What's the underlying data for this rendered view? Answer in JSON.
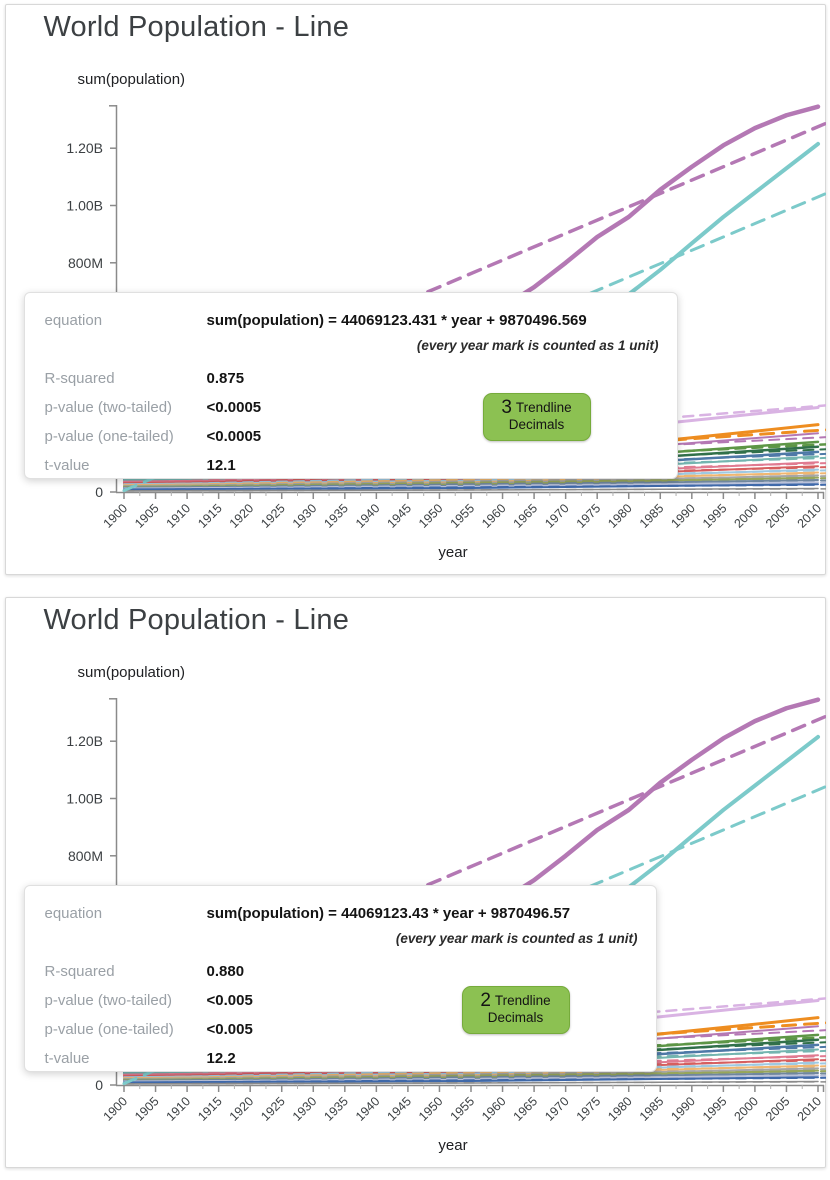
{
  "panels": [
    {
      "title": "World Population - Line",
      "tooltip": {
        "equation_label": "equation",
        "equation_value": "sum(population) = 44069123.431 * year + 9870496.569",
        "equation_note": "(every year mark is counted as 1 unit)",
        "stats": [
          {
            "label": "R-squared",
            "value": "0.875"
          },
          {
            "label": "p-value (two-tailed)",
            "value": "<0.0005"
          },
          {
            "label": "p-value (one-tailed)",
            "value": "<0.0005"
          },
          {
            "label": "t-value",
            "value": "12.1"
          }
        ],
        "button": {
          "count": "3",
          "label_line1": "Trendline",
          "label_line2": "Decimals"
        }
      }
    },
    {
      "title": "World Population - Line",
      "tooltip": {
        "equation_label": "equation",
        "equation_value": "sum(population) = 44069123.43 * year + 9870496.57",
        "equation_note": "(every year mark is counted as 1 unit)",
        "stats": [
          {
            "label": "R-squared",
            "value": "0.880"
          },
          {
            "label": "p-value (two-tailed)",
            "value": "<0.005"
          },
          {
            "label": "p-value (one-tailed)",
            "value": "<0.005"
          },
          {
            "label": "t-value",
            "value": "12.2"
          }
        ],
        "button": {
          "count": "2",
          "label_line1": "Trendline",
          "label_line2": "Decimals"
        }
      }
    }
  ],
  "chart_data": {
    "type": "line",
    "title": "World Population - Line",
    "xlabel": "year",
    "ylabel": "sum(population)",
    "unit": "billions",
    "xlim": [
      1900,
      2010
    ],
    "ylim": [
      0,
      1.35
    ],
    "x_ticks": [
      1900,
      1905,
      1910,
      1915,
      1920,
      1925,
      1930,
      1935,
      1940,
      1945,
      1950,
      1955,
      1960,
      1965,
      1970,
      1975,
      1980,
      1985,
      1990,
      1995,
      2000,
      2005,
      2010
    ],
    "y_ticks": [
      {
        "label": "0",
        "value": 0
      },
      {
        "label": "800M",
        "value": 0.8
      },
      {
        "label": "1.00B",
        "value": 1.0
      },
      {
        "label": "1.20B",
        "value": 1.2
      }
    ],
    "series": [
      {
        "id": "bundle-01",
        "color": "#d9b3e3",
        "width": 3,
        "x": [
          1900,
          1955,
          2010
        ],
        "values": [
          0.125,
          0.17,
          0.295
        ],
        "trend": {
          "start": 0.11,
          "end": 0.3,
          "width": 2.5
        }
      },
      {
        "id": "bundle-02",
        "color": "#ee8d20",
        "width": 3,
        "x": [
          1900,
          1955,
          2010
        ],
        "values": [
          0.075,
          0.11,
          0.235
        ],
        "trend": {
          "start": 0.055,
          "end": 0.215,
          "width": 3
        }
      },
      {
        "id": "bundle-03",
        "color": "#b478b4",
        "width": 2,
        "x": [
          1900,
          1955,
          2010
        ],
        "values": [
          0.08,
          0.112,
          0.205
        ],
        "trend": {
          "start": 0.07,
          "end": 0.19,
          "width": 2
        }
      },
      {
        "id": "bundle-04",
        "color": "#5d9646",
        "width": 2.5,
        "x": [
          1900,
          1955,
          2010
        ],
        "values": [
          0.058,
          0.09,
          0.175
        ],
        "trend": {
          "start": 0.05,
          "end": 0.165,
          "width": 2.5
        }
      },
      {
        "id": "bundle-05",
        "color": "#31704a",
        "width": 2.5,
        "x": [
          1900,
          1955,
          2010
        ],
        "values": [
          0.052,
          0.08,
          0.158
        ],
        "trend": {
          "start": 0.047,
          "end": 0.148,
          "width": 2
        }
      },
      {
        "id": "bundle-06",
        "color": "#4e79a7",
        "width": 2.5,
        "x": [
          1900,
          1955,
          2010
        ],
        "values": [
          0.047,
          0.07,
          0.14
        ],
        "trend": {
          "start": 0.042,
          "end": 0.132,
          "width": 2
        }
      },
      {
        "id": "bundle-07",
        "color": "#74b5b0",
        "width": 2,
        "x": [
          1900,
          1955,
          2010
        ],
        "values": [
          0.042,
          0.06,
          0.124
        ],
        "trend": {
          "start": 0.038,
          "end": 0.118,
          "width": 2
        }
      },
      {
        "id": "bundle-08",
        "color": "#e07b91",
        "width": 2,
        "x": [
          1900,
          1955,
          2010
        ],
        "values": [
          0.036,
          0.05,
          0.104
        ],
        "trend": {
          "start": 0.033,
          "end": 0.1,
          "width": 2
        }
      },
      {
        "id": "bundle-09",
        "color": "#d65f5f",
        "width": 2,
        "x": [
          1900,
          1955,
          2010
        ],
        "values": [
          0.031,
          0.045,
          0.09
        ],
        "trend": {
          "start": 0.028,
          "end": 0.086,
          "width": 2
        }
      },
      {
        "id": "bundle-10",
        "color": "#9ec9e2",
        "width": 2,
        "x": [
          1900,
          1955,
          2010
        ],
        "values": [
          0.027,
          0.04,
          0.078
        ],
        "trend": {
          "start": 0.025,
          "end": 0.075,
          "width": 2
        }
      },
      {
        "id": "bundle-11",
        "color": "#f0b670",
        "width": 2,
        "x": [
          1900,
          1955,
          2010
        ],
        "values": [
          0.024,
          0.034,
          0.068
        ],
        "trend": {
          "start": 0.022,
          "end": 0.065,
          "width": 2
        }
      },
      {
        "id": "bundle-12",
        "color": "#a6a6a6",
        "width": 2,
        "x": [
          1900,
          1955,
          2010
        ],
        "values": [
          0.021,
          0.03,
          0.058
        ],
        "trend": {
          "start": 0.019,
          "end": 0.055,
          "width": 2
        }
      },
      {
        "id": "bundle-13",
        "color": "#97a65a",
        "width": 2,
        "x": [
          1900,
          1955,
          2010
        ],
        "values": [
          0.018,
          0.026,
          0.05
        ],
        "trend": {
          "start": 0.017,
          "end": 0.048,
          "width": 2
        }
      },
      {
        "id": "bundle-14",
        "color": "#70879e",
        "width": 2,
        "x": [
          1900,
          1955,
          2010
        ],
        "values": [
          0.015,
          0.022,
          0.042
        ],
        "trend": {
          "start": 0.014,
          "end": 0.04,
          "width": 2
        }
      },
      {
        "id": "bundle-15",
        "color": "#bac1d9",
        "width": 2,
        "x": [
          1900,
          1955,
          2010
        ],
        "values": [
          0.012,
          0.018,
          0.034
        ],
        "trend": {
          "start": 0.011,
          "end": 0.032,
          "width": 2
        }
      },
      {
        "id": "bundle-16",
        "color": "#3f69aa",
        "width": 2,
        "x": [
          1900,
          1955,
          2010
        ],
        "values": [
          0.009,
          0.014,
          0.027
        ],
        "trend": {
          "start": 0.008,
          "end": 0.025,
          "width": 2
        }
      },
      {
        "id": "bundle-17",
        "color": "#8a8a8a",
        "width": 1.5,
        "x": [
          1900,
          1955,
          2010
        ],
        "values": [
          0.004,
          0.007,
          0.012
        ],
        "trend": {
          "start": 0.004,
          "end": 0.011,
          "width": 1.5
        }
      },
      {
        "id": "series-teal-major",
        "color": "#7ccaca",
        "width": 4,
        "x": [
          1900,
          1905,
          1910,
          1915,
          1920,
          1925,
          1930,
          1935,
          1940,
          1945,
          1950,
          1955,
          1960,
          1965,
          1970,
          1975,
          1980,
          1985,
          1990,
          1995,
          2000,
          2005,
          2010
        ],
        "values": [
          0.238,
          0.24,
          0.243,
          0.246,
          0.248,
          0.256,
          0.27,
          0.288,
          0.31,
          0.332,
          0.358,
          0.395,
          0.44,
          0.492,
          0.55,
          0.618,
          0.69,
          0.775,
          0.868,
          0.96,
          1.045,
          1.13,
          1.215
        ],
        "trend": {
          "start": 0.005,
          "end": 1.03,
          "width": 3
        }
      },
      {
        "id": "series-purple-major",
        "color": "#b478b4",
        "width": 4.5,
        "x": [
          1900,
          1905,
          1910,
          1915,
          1920,
          1925,
          1930,
          1935,
          1940,
          1945,
          1950,
          1955,
          1960,
          1965,
          1970,
          1975,
          1980,
          1985,
          1990,
          1995,
          2000,
          2005,
          2010
        ],
        "values": [
          0.4,
          0.408,
          0.418,
          0.428,
          0.44,
          0.455,
          0.472,
          0.49,
          0.512,
          0.528,
          0.552,
          0.596,
          0.645,
          0.715,
          0.8,
          0.89,
          0.96,
          1.055,
          1.135,
          1.21,
          1.27,
          1.315,
          1.345
        ],
        "trend": {
          "start": 0.25,
          "end": 1.275,
          "width": 3.5
        }
      }
    ]
  },
  "colors": {
    "button_green": "#8cc152",
    "panel_border": "#d8d8d8",
    "axis": "#8a8a8a",
    "tick_text": "#3c4043",
    "tooltip_label_gray": "#9aa0a6",
    "tooltip_value": "#141414"
  }
}
